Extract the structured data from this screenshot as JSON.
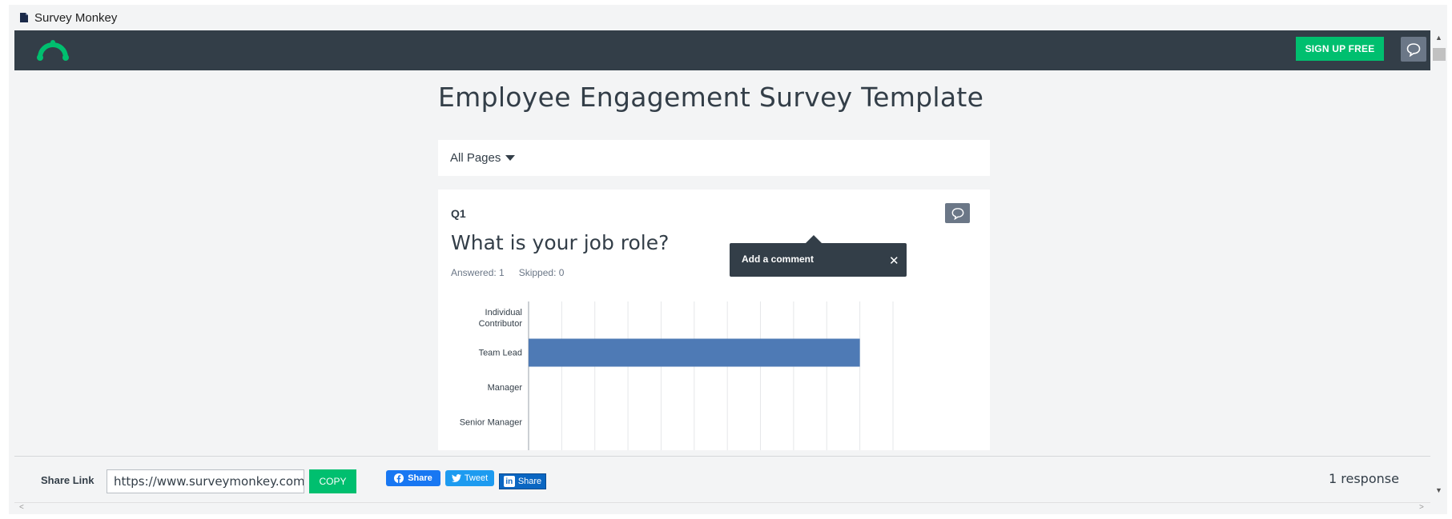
{
  "window": {
    "tab_title": "Survey Monkey"
  },
  "header": {
    "signup_label": "SIGN UP FREE",
    "brand_color": "#00bf6f",
    "bar_color": "#333e48"
  },
  "main": {
    "title": "Employee Engagement Survey Template",
    "pages_dropdown": "All Pages"
  },
  "question": {
    "number": "Q1",
    "text": "What is your job role?",
    "answered": "Answered: 1",
    "skipped": "Skipped: 0"
  },
  "tooltip": {
    "label": "Add a comment",
    "close": "✕"
  },
  "chart_data": {
    "type": "bar",
    "orientation": "horizontal",
    "categories": [
      [
        "Individual",
        "Contributor"
      ],
      [
        "Team Lead"
      ],
      [
        "Manager"
      ],
      [
        "Senior Manager"
      ]
    ],
    "values": [
      0,
      100,
      0,
      0
    ],
    "xlim": [
      0,
      110
    ],
    "grid": true,
    "bar_color": "#4e7ab5"
  },
  "footer": {
    "share_label": "Share Link",
    "share_url": "https://www.surveymonkey.com/re",
    "copy_label": "COPY",
    "facebook_label": "Share",
    "twitter_label": "Tweet",
    "linkedin_label": "Share",
    "responses": "1 response"
  }
}
